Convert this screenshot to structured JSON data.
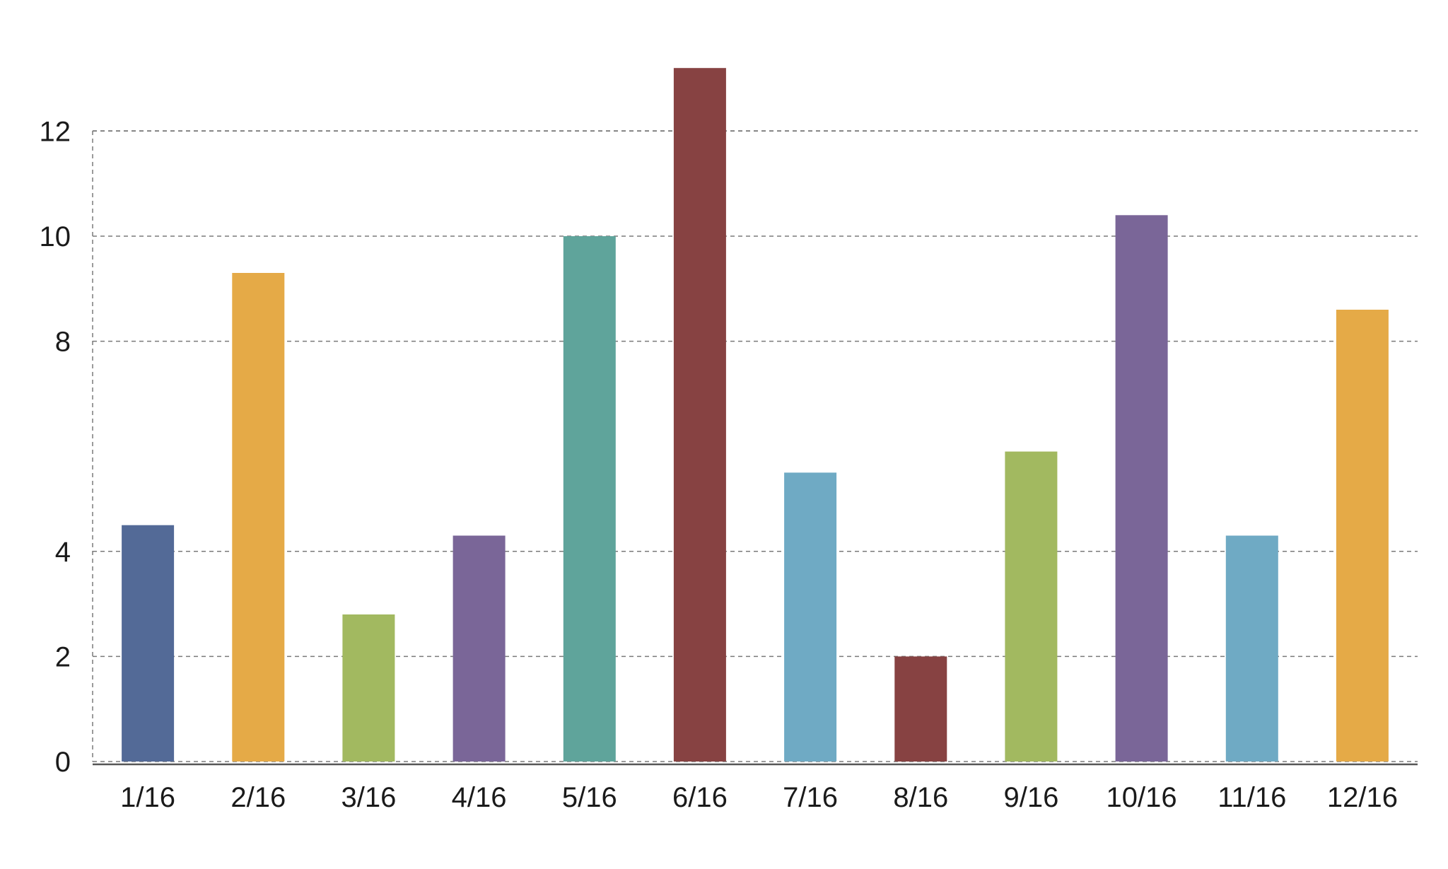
{
  "chart_data": {
    "type": "bar",
    "title": "",
    "xlabel": "",
    "ylabel": "",
    "categories": [
      "1/16",
      "2/16",
      "3/16",
      "4/16",
      "5/16",
      "6/16",
      "7/16",
      "8/16",
      "9/16",
      "10/16",
      "11/16",
      "12/16"
    ],
    "values": [
      4.5,
      9.3,
      2.8,
      4.3,
      10,
      13.2,
      5.5,
      2,
      5.9,
      10.4,
      4.3,
      8.6
    ],
    "bar_colors": [
      "#536a97",
      "#e5aa47",
      "#a2b960",
      "#7a6698",
      "#5fa49b",
      "#874242",
      "#6faac4",
      "#874242",
      "#a2b960",
      "#7a6698",
      "#6faac4",
      "#e5aa47"
    ],
    "y_tick_labels": [
      "0",
      "2",
      "4",
      "8",
      "10",
      "12"
    ],
    "ylim": [
      0,
      14
    ],
    "grid": true,
    "legend": "none"
  }
}
